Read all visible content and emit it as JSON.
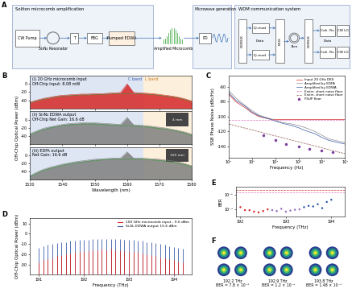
{
  "diagram": {
    "label": "A",
    "soliton": {
      "title": "Soliton microcomb amplification",
      "pump": "CW Pump",
      "resonator": "Si₃N₄ Resonator",
      "filter": "T",
      "fbg": "FBG",
      "edwa": "Pumped EDWA"
    },
    "comb": "Amplified Microcomb",
    "microwave": {
      "title": "Microwave generation",
      "pd": "PD"
    },
    "wdm": {
      "title": "WDM communication system",
      "demux": "DEMUX",
      "iq": "IQ-mod",
      "data": "Data",
      "mux": "MUX",
      "fiber": "1km",
      "rx": "Coh. Rx",
      "lo": "CW LO"
    }
  },
  "chart_data": [
    {
      "panel": "B",
      "type": "area",
      "x": [
        1530,
        1532,
        1534,
        1536,
        1538,
        1540,
        1542,
        1544,
        1546,
        1548,
        1550,
        1552,
        1554,
        1556,
        1558,
        1560,
        1562,
        1564,
        1566,
        1568,
        1570,
        1572,
        1574,
        1576,
        1578,
        1580
      ],
      "xlabel": "Wavelength (nm)",
      "ylabel": "Off-Chip Optical Power (dBm)",
      "xlim": [
        1530,
        1580
      ],
      "xticks": [
        1530,
        1540,
        1550,
        1560,
        1570,
        1580
      ],
      "ylim": [
        -60,
        20
      ],
      "yticks": [
        -40,
        -20,
        0
      ],
      "bands": [
        {
          "label": "C band",
          "range": [
            1530,
            1565
          ],
          "color": "#c9d6ee"
        },
        {
          "label": "L band",
          "range": [
            1565,
            1580
          ],
          "color": "#fbe5c6"
        }
      ],
      "subplots": [
        {
          "labels": [
            "(i) 20 GHz microcomb input",
            "Off-Chip Input: 8.08 mW"
          ],
          "series": [
            {
              "color": "#d62728",
              "values": [
                -45,
                -40,
                -36,
                -33,
                -30,
                -28,
                -27,
                -26,
                -25,
                -25,
                -24,
                -24,
                -23,
                -22,
                -21,
                0,
                -21,
                -22,
                -23,
                -24,
                -26,
                -28,
                -30,
                -33,
                -37,
                -42
              ]
            },
            {
              "color": "#2ca02c",
              "line_style": "dashed",
              "values": [
                -47,
                -42,
                -38,
                -35,
                -32,
                -30,
                -29,
                -28,
                -27,
                -27,
                -26,
                -26,
                -25,
                -24,
                -24,
                -24,
                -24,
                -24,
                -25,
                -26,
                -28,
                -30,
                -32,
                -35,
                -39,
                -44
              ]
            }
          ]
        },
        {
          "labels": [
            "(ii) Si₃N₄ EDWA output",
            "Off-Chip Net Gain: 16.6 dB"
          ],
          "inset": "4 mm",
          "series": [
            {
              "color": "#7f7f7f",
              "values": [
                -35,
                -28,
                -22,
                -18,
                -15,
                -12,
                -10,
                -9,
                -8,
                -8,
                -8,
                -9,
                -10,
                -11,
                -12,
                5,
                -13,
                -14,
                -15,
                -17,
                -19,
                -21,
                -24,
                -27,
                -31,
                -36
              ]
            },
            {
              "color": "#2ca02c",
              "line_style": "dashed",
              "values": [
                -38,
                -31,
                -25,
                -21,
                -18,
                -15,
                -13,
                -12,
                -11,
                -11,
                -11,
                -12,
                -13,
                -14,
                -15,
                -15,
                -16,
                -17,
                -18,
                -20,
                -22,
                -24,
                -27,
                -30,
                -34,
                -39
              ]
            }
          ]
        },
        {
          "labels": [
            "(iii) EDFA output",
            "Net Gain: 16.6 dB"
          ],
          "inset": "100 mm",
          "series": [
            {
              "color": "#7f7f7f",
              "values": [
                -50,
                -42,
                -35,
                -30,
                -26,
                -22,
                -19,
                -16,
                -14,
                -12,
                -10,
                -9,
                -8,
                -7,
                -7,
                8,
                -7,
                -7,
                -8,
                -9,
                -10,
                -12,
                -14,
                -17,
                -21,
                -26
              ]
            },
            {
              "color": "#2ca02c",
              "line_style": "dashed",
              "values": [
                -53,
                -45,
                -38,
                -33,
                -29,
                -25,
                -22,
                -19,
                -17,
                -15,
                -13,
                -12,
                -11,
                -10,
                -10,
                -10,
                -10,
                -10,
                -11,
                -12,
                -13,
                -15,
                -17,
                -20,
                -24,
                -29
              ]
            }
          ]
        }
      ]
    },
    {
      "panel": "C",
      "type": "line",
      "log": "x",
      "legend": "upper right",
      "xlabel": "Frequency (Hz)",
      "ylabel": "SSB Phase Noise (dBc/Hz)",
      "xlim": [
        100,
        10000000
      ],
      "xticks": [
        {
          "value": 100,
          "label": "10²"
        },
        {
          "value": 1000,
          "label": "10³"
        },
        {
          "value": 10000,
          "label": "10⁴"
        },
        {
          "value": 100000,
          "label": "10⁵"
        },
        {
          "value": 1000000,
          "label": "10⁶"
        },
        {
          "value": 10000000,
          "label": "10⁷"
        }
      ],
      "ylim": [
        -155,
        -45
      ],
      "yticks": [
        -140,
        -120,
        -100,
        -80,
        -60
      ],
      "series": [
        {
          "name": "Input 20 GHz DKS",
          "color": "#d62728",
          "line_style": "solid",
          "x": [
            100,
            200,
            500,
            1000,
            2000,
            5000,
            10000,
            20000,
            50000,
            100000,
            200000,
            500000,
            1000000,
            2000000,
            5000000,
            10000000
          ],
          "values": [
            -70,
            -80,
            -88,
            -95,
            -100,
            -103,
            -104,
            -104,
            -104,
            -104,
            -104,
            -104,
            -104,
            -104,
            -104,
            -104
          ]
        },
        {
          "name": "Amplified by EDFA",
          "color": "#8c8c8c",
          "line_style": "solid",
          "x": [
            100,
            200,
            500,
            1000,
            2000,
            5000,
            10000,
            20000,
            50000,
            100000,
            200000,
            500000,
            1000000,
            2000000,
            5000000,
            10000000
          ],
          "values": [
            -65,
            -75,
            -85,
            -92,
            -98,
            -102,
            -105,
            -108,
            -110,
            -112,
            -115,
            -120,
            -125,
            -130,
            -133,
            -135
          ]
        },
        {
          "name": "Amplified by EDWA",
          "color": "#3b5ba9",
          "line_style": "solid",
          "x": [
            100,
            200,
            500,
            1000,
            2000,
            5000,
            10000,
            20000,
            50000,
            100000,
            200000,
            500000,
            1000000,
            2000000,
            5000000,
            10000000
          ],
          "values": [
            -68,
            -78,
            -86,
            -94,
            -99,
            -103,
            -106,
            -109,
            -112,
            -115,
            -119,
            -123,
            -128,
            -132,
            -135,
            -137
          ]
        },
        {
          "name": "Estim. short noise floor",
          "color": "#e377c2",
          "line_style": "dashed",
          "x": [
            100,
            10000000
          ],
          "values": [
            -104,
            -104
          ]
        },
        {
          "name": "Estim. short noise floor",
          "color": "#8c564b",
          "line_style": "dashed",
          "x": [
            100,
            10000000
          ],
          "values": [
            -110,
            -150
          ]
        },
        {
          "name": "FSUP floor",
          "color": "#7b3fa0",
          "marker": "circle",
          "x": [
            3000,
            10000,
            30000,
            100000,
            300000,
            1000000,
            3000000
          ],
          "values": [
            -125,
            -132,
            -137,
            -140,
            -143,
            -146,
            -148
          ]
        }
      ]
    },
    {
      "panel": "D",
      "type": "stem",
      "legend": "upper right",
      "xlabel": "Frequency (THz)",
      "ylabel": "Off-Chip Optical Power (dBm)",
      "xlim": [
        190.8,
        194.4
      ],
      "xticks": [
        191,
        192,
        193,
        194
      ],
      "ylim": [
        -40,
        15
      ],
      "yticks": [
        -30,
        -20,
        -10,
        0,
        10
      ],
      "x": [
        191.0,
        191.1,
        191.2,
        191.3,
        191.4,
        191.5,
        191.6,
        191.7,
        191.8,
        191.9,
        192.0,
        192.1,
        192.2,
        192.3,
        192.4,
        192.5,
        192.6,
        192.7,
        192.8,
        192.9,
        193.0,
        193.1,
        193.2,
        193.3,
        193.4,
        193.5,
        193.6,
        193.7,
        193.8,
        193.9,
        194.0,
        194.1,
        194.2
      ],
      "series": [
        {
          "name": "Si₃N₄ EDWA output 15.6 dBm",
          "color": "#3b5ba9",
          "values": [
            -14,
            -12,
            -11,
            -10,
            -9,
            -8,
            -8,
            -7,
            -7,
            -6,
            -6,
            -6,
            -5,
            -5,
            -5,
            -5,
            -5,
            -5,
            -5,
            -6,
            -6,
            -6,
            -7,
            -7,
            -8,
            -8,
            -9,
            -10,
            -11,
            -12,
            -13,
            -14,
            -15
          ]
        },
        {
          "name": "100 GHz microcomb input - 9.0 dBm",
          "color": "#d62728",
          "values": [
            -28,
            -26,
            -25,
            -24,
            -22,
            -21,
            -20,
            -19,
            -18,
            -18,
            -17,
            -17,
            -16,
            -16,
            -15,
            -16,
            -15,
            -16,
            -16,
            -17,
            -17,
            -18,
            -18,
            -19,
            -20,
            -21,
            -22,
            -23,
            -24,
            -25,
            -26,
            -27,
            -28
          ]
        }
      ]
    },
    {
      "panel": "E",
      "type": "scatter",
      "log": "y",
      "xlabel": "Frequency (THz)",
      "ylabel": "BER",
      "xlim": [
        191.9,
        194.3
      ],
      "xticks": [
        192,
        193,
        194
      ],
      "ylim": [
        1e-06,
        0.01
      ],
      "yticks": [
        {
          "value": 1e-05,
          "label": "10⁻⁵"
        },
        {
          "value": 0.001,
          "label": "10⁻³"
        }
      ],
      "x": [
        192.0,
        192.1,
        192.2,
        192.3,
        192.4,
        192.5,
        192.6,
        192.7,
        192.8,
        192.9,
        193.0,
        193.1,
        193.2,
        193.3,
        193.4,
        193.5,
        193.6,
        193.7,
        193.8,
        193.9,
        194.0
      ],
      "values": [
        2e-05,
        8e-06,
        7.8e-06,
        5e-06,
        4e-06,
        6e-06,
        1e-05,
        8e-06,
        6e-06,
        1.2e-05,
        5e-06,
        7e-06,
        9e-06,
        1e-05,
        2e-05,
        3e-05,
        2.5e-05,
        5e-05,
        1.48e-05,
        0.0001,
        0.0002
      ],
      "colors": [
        "#d62728",
        "#d62728",
        "#d62728",
        "#d62728",
        "#d62728",
        "#d62728",
        "#d62728",
        "#9467bd",
        "#9467bd",
        "#9467bd",
        "#9467bd",
        "#9467bd",
        "#9467bd",
        "#9467bd",
        "#1f4fa8",
        "#1f4fa8",
        "#1f4fa8",
        "#1f4fa8",
        "#1f4fa8",
        "#1f4fa8",
        "#1f4fa8"
      ],
      "thresholds": [
        {
          "value": 0.0038,
          "color": "#d62728"
        },
        {
          "value": 0.002,
          "color": "#e377c2"
        }
      ]
    },
    {
      "panel": "F",
      "type": "constellation",
      "tick_labels": false,
      "symbols": [
        [
          -1,
          1
        ],
        [
          1,
          1
        ],
        [
          -1,
          -1
        ],
        [
          1,
          -1
        ]
      ],
      "plots": [
        {
          "frequency": "192.2 THz",
          "ber": "BER = 7.8 × 10⁻⁶"
        },
        {
          "frequency": "192.9 THz",
          "ber": "BER = 1.2 × 10⁻⁵"
        },
        {
          "frequency": "193.8 THz",
          "ber": "BER = 1.48 × 10⁻⁵"
        }
      ]
    }
  ]
}
